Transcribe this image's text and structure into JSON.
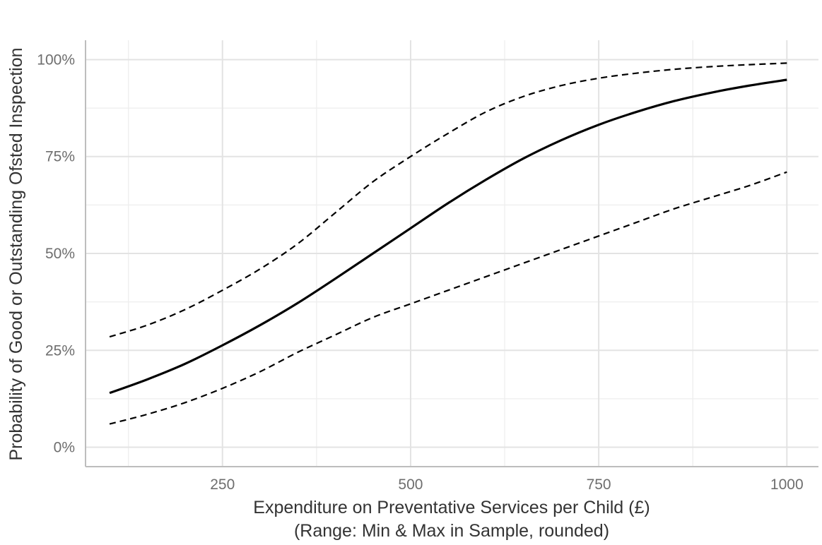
{
  "chart_data": {
    "type": "line",
    "title": "",
    "xlabel": "Expenditure on Preventative Services per Child (£)",
    "xlabel_line2": "(Range: Min & Max in Sample, rounded)",
    "ylabel": "Probability of Good or Outstanding Ofsted Inspection",
    "xlim": [
      68,
      1042
    ],
    "ylim": [
      -0.05,
      1.05
    ],
    "x_ticks": [
      250,
      500,
      750,
      1000
    ],
    "x_tick_labels": [
      "250",
      "500",
      "750",
      "1000"
    ],
    "y_ticks": [
      0,
      0.25,
      0.5,
      0.75,
      1.0
    ],
    "y_tick_labels": [
      "0%",
      "25%",
      "50%",
      "75%",
      "100%"
    ],
    "grid": true,
    "legend": "none",
    "series": [
      {
        "role": "estimate",
        "line_style": "solid",
        "color": "#000000",
        "x": [
          100,
          150,
          200,
          250,
          300,
          350,
          400,
          450,
          500,
          550,
          600,
          650,
          700,
          750,
          800,
          850,
          900,
          950,
          1000
        ],
        "y": [
          0.14,
          0.175,
          0.215,
          0.263,
          0.315,
          0.372,
          0.435,
          0.5,
          0.565,
          0.63,
          0.69,
          0.745,
          0.792,
          0.832,
          0.865,
          0.893,
          0.915,
          0.933,
          0.948
        ]
      },
      {
        "role": "upper_bound",
        "line_style": "dashed",
        "color": "#000000",
        "x": [
          100,
          150,
          200,
          250,
          300,
          350,
          400,
          450,
          500,
          550,
          600,
          650,
          700,
          750,
          800,
          850,
          900,
          950,
          1000
        ],
        "y": [
          0.285,
          0.315,
          0.355,
          0.405,
          0.46,
          0.525,
          0.605,
          0.685,
          0.75,
          0.81,
          0.865,
          0.905,
          0.933,
          0.952,
          0.965,
          0.975,
          0.982,
          0.987,
          0.991
        ]
      },
      {
        "role": "lower_bound",
        "line_style": "dashed",
        "color": "#000000",
        "x": [
          100,
          150,
          200,
          250,
          300,
          350,
          400,
          450,
          500,
          550,
          600,
          650,
          700,
          750,
          800,
          850,
          900,
          950,
          1000
        ],
        "y": [
          0.06,
          0.085,
          0.115,
          0.152,
          0.195,
          0.245,
          0.29,
          0.335,
          0.37,
          0.405,
          0.44,
          0.475,
          0.51,
          0.545,
          0.58,
          0.615,
          0.645,
          0.675,
          0.71
        ]
      }
    ]
  }
}
